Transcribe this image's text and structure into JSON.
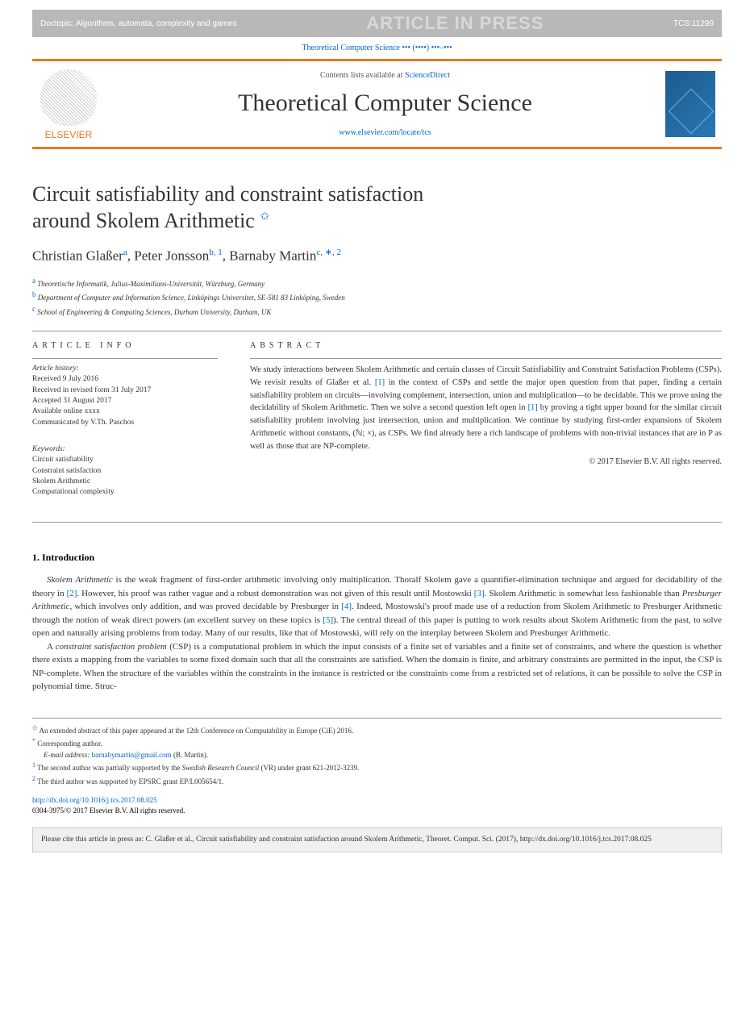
{
  "watermark": {
    "left": "Doctopic: Algorithms, automata, complexity and games",
    "center": "ARTICLE IN PRESS",
    "right": "TCS:11299"
  },
  "journal_ref": "Theoretical Computer Science ••• (••••) •••–•••",
  "header": {
    "contents_prefix": "Contents lists available at ",
    "contents_link": "ScienceDirect",
    "journal_name": "Theoretical Computer Science",
    "url": "www.elsevier.com/locate/tcs",
    "elsevier": "ELSEVIER"
  },
  "title": {
    "line1": "Circuit satisfiability and constraint satisfaction",
    "line2": "around Skolem Arithmetic",
    "star": "✩"
  },
  "authors": {
    "a1_name": "Christian Glaßer",
    "a1_sup": "a",
    "a2_name": "Peter Jonsson",
    "a2_sup": "b, 1",
    "a3_name": "Barnaby Martin",
    "a3_sup": "c, ∗, 2"
  },
  "affiliations": {
    "a": "Theoretische Informatik, Julius-Maximilians-Universität, Würzburg, Germany",
    "b": "Department of Computer and Information Science, Linköpings Universitet, SE-581 83 Linköping, Sweden",
    "c": "School of Engineering & Computing Sciences, Durham University, Durham, UK"
  },
  "article_info": {
    "heading": "ARTICLE INFO",
    "history_label": "Article history:",
    "received": "Received 9 July 2016",
    "revised": "Received in revised form 31 July 2017",
    "accepted": "Accepted 31 August 2017",
    "available": "Available online xxxx",
    "communicated": "Communicated by V.Th. Paschos",
    "keywords_label": "Keywords:",
    "kw1": "Circuit satisfiability",
    "kw2": "Constraint satisfaction",
    "kw3": "Skolem Arithmetic",
    "kw4": "Computational complexity"
  },
  "abstract": {
    "heading": "ABSTRACT",
    "text_p1a": "We study interactions between Skolem Arithmetic and certain classes of Circuit Satisfiability and Constraint Satisfaction Problems (CSPs). We revisit results of Glaßer et al. ",
    "ref1": "[1]",
    "text_p1b": " in the context of CSPs and settle the major open question from that paper, finding a certain satisfiability problem on circuits—involving complement, intersection, union and multiplication—to be decidable. This we prove using the decidability of Skolem Arithmetic. Then we solve a second question left open in ",
    "ref2": "[1]",
    "text_p1c": " by proving a tight upper bound for the similar circuit satisfiability problem involving just intersection, union and multiplication. We continue by studying first-order expansions of Skolem Arithmetic without constants, (ℕ; ×), as CSPs. We find already here a rich landscape of problems with non-trivial instances that are in P as well as those that are NP-complete.",
    "copyright": "© 2017 Elsevier B.V. All rights reserved."
  },
  "intro": {
    "heading": "1. Introduction",
    "p1a": "Skolem Arithmetic",
    "p1b": " is the weak fragment of first-order arithmetic involving only multiplication. Thoralf Skolem gave a quantifier-elimination technique and argued for decidability of the theory in ",
    "ref2": "[2]",
    "p1c": ". However, his proof was rather vague and a robust demonstration was not given of this result until Mostowski ",
    "ref3": "[3]",
    "p1d": ". Skolem Arithmetic is somewhat less fashionable than ",
    "p1e": "Presburger Arithmetic",
    "p1f": ", which involves only addition, and was proved decidable by Presburger in ",
    "ref4": "[4]",
    "p1g": ". Indeed, Mostowski's proof made use of a reduction from Skolem Arithmetic to Presburger Arithmetic through the notion of weak direct powers (an excellent survey on these topics is ",
    "ref5": "[5]",
    "p1h": "). The central thread of this paper is putting to work results about Skolem Arithmetic from the past, to solve open and naturally arising problems from today. Many of our results, like that of Mostowski, will rely on the interplay between Skolem and Presburger Arithmetic.",
    "p2a": "A ",
    "p2b": "constraint satisfaction problem",
    "p2c": " (CSP) is a computational problem in which the input consists of a finite set of variables and a finite set of constraints, and where the question is whether there exists a mapping from the variables to some fixed domain such that all the constraints are satisfied. When the domain is finite, and arbitrary constraints are permitted in the input, the CSP is NP-complete. When the structure of the variables within the constraints in the instance is restricted or the constraints come from a restricted set of relations, it can be possible to solve the CSP in polynomial time. Struc-"
  },
  "footnotes": {
    "star": "An extended abstract of this paper appeared at the 12th Conference on Computability in Europe (CiE) 2016.",
    "corr": "Corresponding author.",
    "email_label": "E-mail address:",
    "email": "barnabymartin@gmail.com",
    "email_who": "(B. Martin).",
    "n1a": "The second author was partially supported by the ",
    "n1b": "Swedish Research Council",
    "n1c": " (VR) under grant 621-2012-3239.",
    "n2": "The third author was supported by EPSRC grant EP/L005654/1."
  },
  "doi": {
    "url": "http://dx.doi.org/10.1016/j.tcs.2017.08.025",
    "issn": "0304-3975/© 2017 Elsevier B.V. All rights reserved."
  },
  "citebox": "Please cite this article in press as: C. Glaßer et al., Circuit satisfiability and constraint satisfaction around Skolem Arithmetic, Theoret. Comput. Sci. (2017), http://dx.doi.org/10.1016/j.tcs.2017.08.025",
  "colors": {
    "orange": "#e87722",
    "link": "#0066cc",
    "watermark_bg": "#b8b8b8",
    "cover_bg": "#1e5a8e"
  }
}
